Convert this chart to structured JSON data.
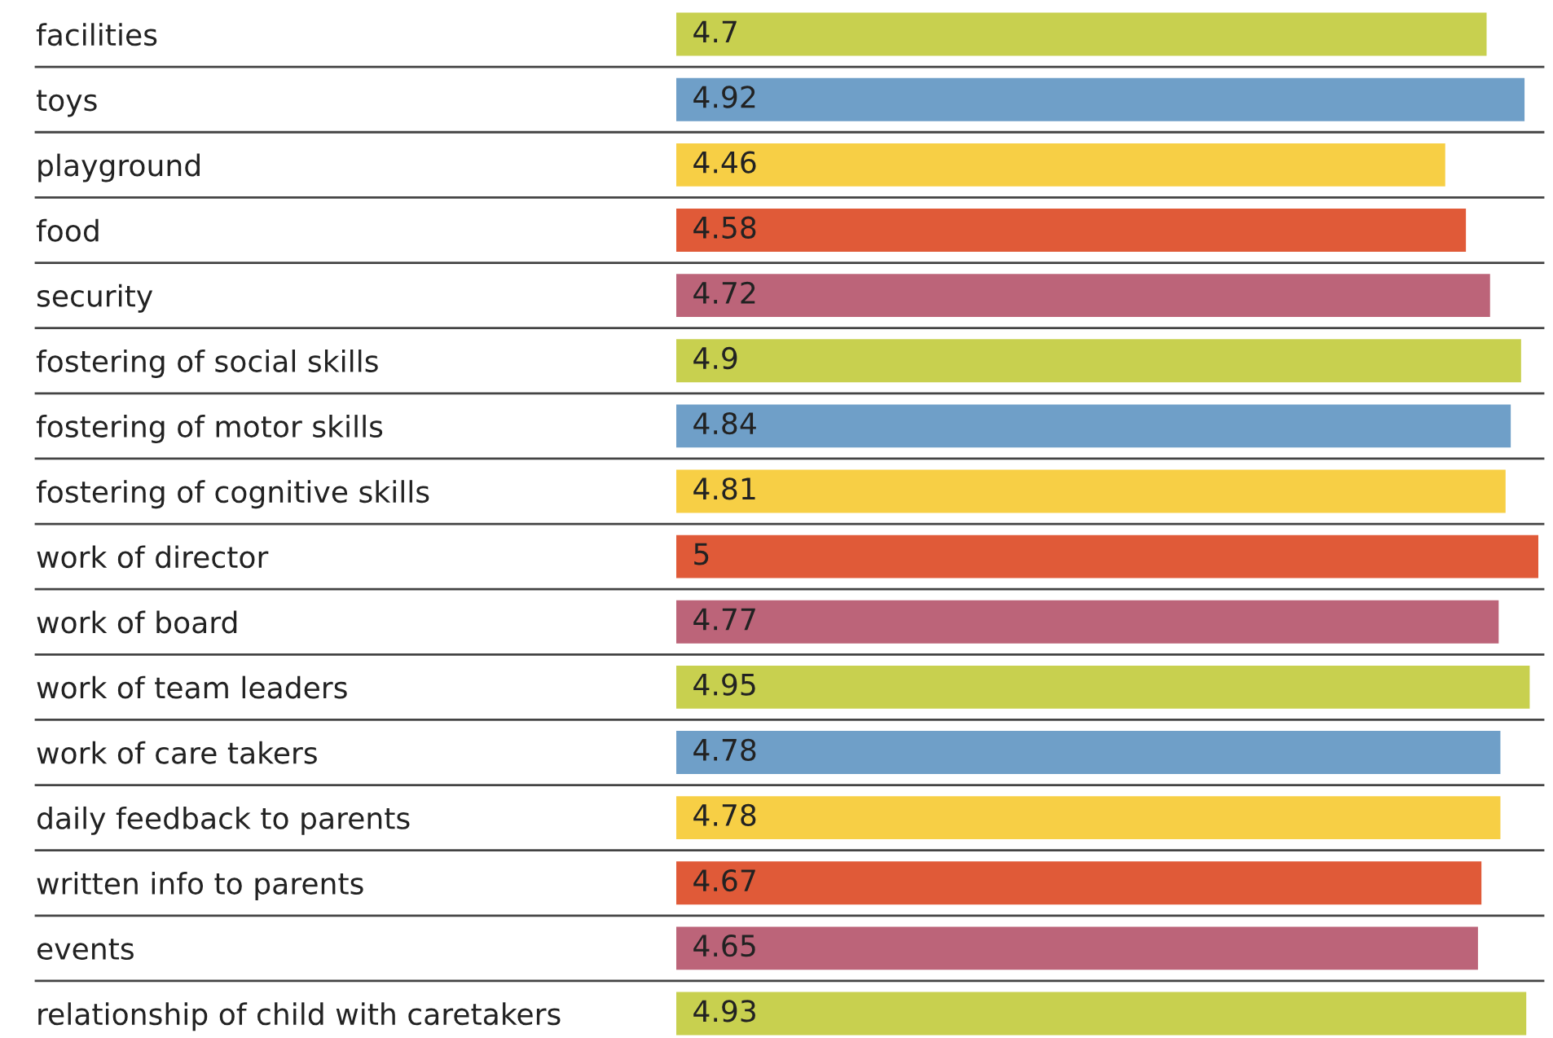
{
  "chart_data": {
    "type": "bar",
    "orientation": "horizontal",
    "categories": [
      "facilities",
      "toys",
      "playground",
      "food",
      "security",
      "fostering of social skills",
      "fostering of motor skills",
      "fostering of cognitive skills",
      "work of director",
      "work of board",
      "work of team leaders",
      "work of care takers",
      "daily feedback to parents",
      "written info to parents",
      "events",
      "relationship of child with caretakers"
    ],
    "values": [
      4.7,
      4.92,
      4.46,
      4.58,
      4.72,
      4.9,
      4.84,
      4.81,
      5,
      4.77,
      4.95,
      4.78,
      4.78,
      4.67,
      4.65,
      4.93
    ],
    "colors": [
      "#c8d04f",
      "#6f9fc8",
      "#f7cf45",
      "#e05a38",
      "#bc6479",
      "#c8d04f",
      "#6f9fc8",
      "#f7cf45",
      "#e05a38",
      "#bc6479",
      "#c8d04f",
      "#6f9fc8",
      "#f7cf45",
      "#e05a38",
      "#bc6479",
      "#c8d04f"
    ],
    "xlim": [
      0,
      5
    ],
    "tick_labels": "y",
    "data_labels": true,
    "grid": false,
    "legend": false
  }
}
